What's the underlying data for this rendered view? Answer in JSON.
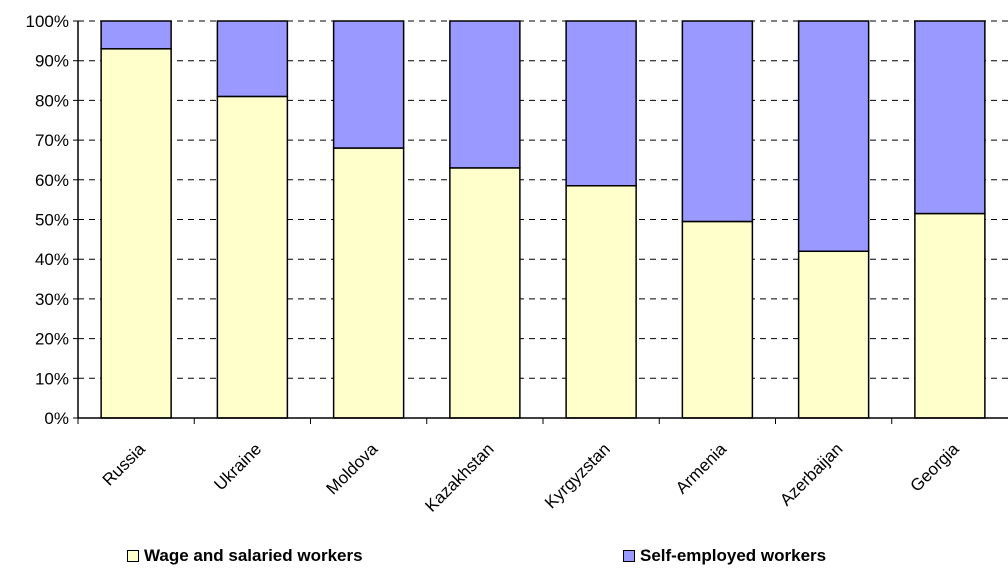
{
  "chart_data": {
    "type": "bar",
    "stacked": true,
    "percent_stacked": true,
    "categories": [
      "Russia",
      "Ukraine",
      "Moldova",
      "Kazakhstan",
      "Kyrgyzstan",
      "Armenia",
      "Azerbaijan",
      "Georgia"
    ],
    "series": [
      {
        "name": "Wage and salaried workers",
        "color": "#FFFFCC",
        "values": [
          93,
          81,
          68,
          63,
          58.5,
          49.5,
          42,
          51.5
        ]
      },
      {
        "name": "Self-employed workers",
        "color": "#9999FF",
        "values": [
          7,
          19,
          32,
          37,
          41.5,
          50.5,
          58,
          48.5
        ]
      }
    ],
    "ylim": [
      0,
      100
    ],
    "yticks": [
      "0%",
      "10%",
      "20%",
      "30%",
      "40%",
      "50%",
      "60%",
      "70%",
      "80%",
      "90%",
      "100%"
    ],
    "grid": "horizontal-dashed",
    "legend_position": "bottom"
  }
}
